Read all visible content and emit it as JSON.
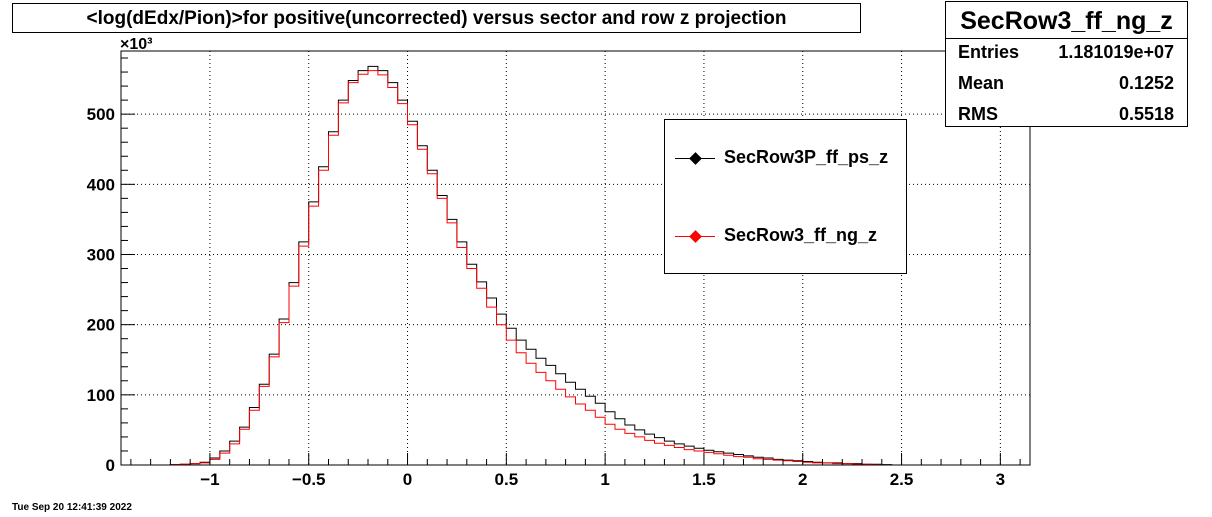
{
  "title": "<log(dEdx/Pion)>for positive(uncorrected) versus sector and row z projection",
  "stats": {
    "name": "SecRow3_ff_ng_z",
    "rows": [
      {
        "label": "Entries",
        "value": "1.181019e+07"
      },
      {
        "label": "Mean",
        "value": "0.1252"
      },
      {
        "label": "RMS",
        "value": "0.5518"
      }
    ]
  },
  "legend": [
    {
      "label": "SecRow3P_ff_ps_z",
      "color": "#000000"
    },
    {
      "label": "SecRow3_ff_ng_z",
      "color": "#ff0000"
    }
  ],
  "timestamp": "Tue Sep 20 12:41:39 2022",
  "chart_data": {
    "type": "line",
    "title": "<log(dEdx/Pion)>for positive(uncorrected) versus sector and row z projection",
    "xlabel": "",
    "ylabel": "",
    "y_multiplier_label": "×10³",
    "xlim": [
      -1.45,
      3.15
    ],
    "ylim": [
      0,
      590
    ],
    "grid": true,
    "x_ticks": [
      -1,
      -0.5,
      0,
      0.5,
      1,
      1.5,
      2,
      2.5,
      3
    ],
    "x_tick_labels": [
      "−1",
      "−0.5",
      "0",
      "0.5",
      "1",
      "1.5",
      "2",
      "2.5",
      "3"
    ],
    "y_ticks": [
      0,
      100,
      200,
      300,
      400,
      500
    ],
    "y_tick_labels": [
      "0",
      "100",
      "200",
      "300",
      "400",
      "500"
    ],
    "bin_start": -1.4,
    "bin_width": 0.05,
    "series": [
      {
        "name": "SecRow3P_ff_ps_z",
        "color": "#000000",
        "values": [
          0,
          0,
          0,
          0,
          0.5,
          1,
          2,
          4,
          10,
          20,
          34,
          54,
          82,
          115,
          158,
          208,
          260,
          318,
          375,
          425,
          475,
          520,
          548,
          562,
          568,
          562,
          545,
          520,
          490,
          455,
          420,
          384,
          350,
          318,
          286,
          261,
          238,
          215,
          195,
          178,
          165,
          152,
          142,
          130,
          118,
          108,
          98,
          88,
          76,
          66,
          57,
          50,
          44,
          39,
          34,
          30,
          27,
          24,
          21,
          19,
          17,
          15,
          13,
          11,
          10,
          8,
          7,
          6,
          5,
          4,
          3,
          3,
          2,
          2,
          1,
          1,
          0.5,
          0,
          0,
          0
        ]
      },
      {
        "name": "SecRow3_ff_ng_z",
        "color": "#ff0000",
        "values": [
          0,
          0,
          0,
          0,
          0.5,
          1,
          2,
          3,
          8,
          17,
          30,
          51,
          78,
          112,
          154,
          203,
          255,
          312,
          369,
          420,
          470,
          516,
          545,
          557,
          562,
          556,
          538,
          515,
          485,
          450,
          415,
          380,
          345,
          310,
          280,
          252,
          225,
          200,
          178,
          160,
          145,
          132,
          120,
          108,
          97,
          87,
          78,
          68,
          58,
          51,
          45,
          40,
          35,
          31,
          28,
          25,
          22,
          20,
          18,
          16,
          14,
          12,
          11,
          9,
          8,
          7,
          6,
          5,
          4,
          3,
          3,
          2,
          2,
          1,
          1,
          0.5,
          0,
          0,
          0,
          0
        ]
      }
    ]
  }
}
